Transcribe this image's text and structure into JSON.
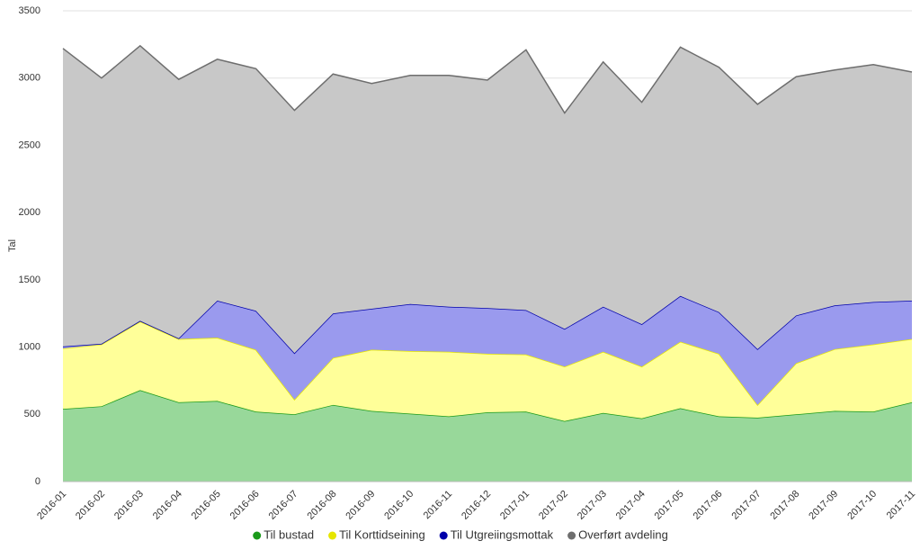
{
  "chart_data": {
    "type": "stacked-area",
    "y_label": "Tal",
    "categories": [
      "2016-01",
      "2016-02",
      "2016-03",
      "2016-04",
      "2016-05",
      "2016-06",
      "2016-07",
      "2016-08",
      "2016-09",
      "2016-10",
      "2016-11",
      "2016-12",
      "2017-01",
      "2017-02",
      "2017-03",
      "2017-04",
      "2017-05",
      "2017-06",
      "2017-07",
      "2017-08",
      "2017-09",
      "2017-10",
      "2017-11"
    ],
    "series": [
      {
        "name": "Til bustad",
        "color": "#1a9a1a",
        "fill": "#98d89a",
        "values": [
          540,
          560,
          680,
          590,
          600,
          520,
          500,
          570,
          525,
          505,
          485,
          515,
          520,
          450,
          510,
          470,
          545,
          485,
          475,
          500,
          525,
          520,
          590
        ]
      },
      {
        "name": "Til Korttidseining",
        "color": "#e6e600",
        "fill": "#ffff99",
        "values": [
          450,
          460,
          510,
          470,
          470,
          460,
          110,
          350,
          455,
          465,
          480,
          435,
          425,
          405,
          455,
          385,
          495,
          465,
          95,
          380,
          460,
          500,
          470
        ]
      },
      {
        "name": "Til Utgreiingsmottak",
        "color": "#0000aa",
        "fill": "#9a9aee",
        "values": [
          15,
          5,
          5,
          5,
          275,
          290,
          345,
          330,
          305,
          350,
          335,
          340,
          330,
          280,
          335,
          315,
          340,
          310,
          415,
          355,
          325,
          315,
          285
        ]
      },
      {
        "name": "Overført avdeling",
        "color": "#6e6e6e",
        "fill": "#c8c8c8",
        "values": [
          2215,
          1975,
          2045,
          1925,
          1795,
          1800,
          1805,
          1780,
          1675,
          1700,
          1720,
          1695,
          1935,
          1605,
          1820,
          1650,
          1850,
          1820,
          1820,
          1775,
          1750,
          1765,
          1700
        ]
      }
    ],
    "ylim": [
      0,
      3500
    ],
    "yticks": [
      0,
      500,
      1000,
      1500,
      2000,
      2500,
      3000,
      3500
    ],
    "grid": true,
    "legend": "bottom"
  }
}
